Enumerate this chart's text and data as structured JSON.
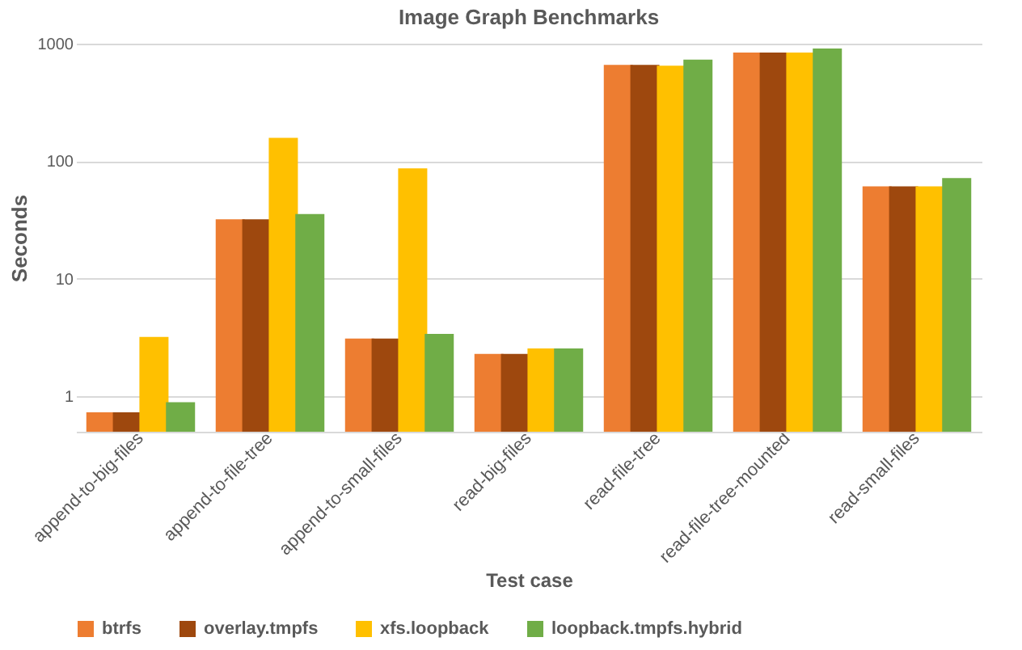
{
  "chart_data": {
    "type": "bar",
    "title": "Image Graph Benchmarks",
    "xlabel": "Test case",
    "ylabel": "Seconds",
    "categories": [
      "append-to-big-files",
      "append-to-file-tree",
      "append-to-small-files",
      "read-big-files",
      "read-file-tree",
      "read-file-tree-mounted",
      "read-small-files"
    ],
    "series": [
      {
        "name": "btrfs",
        "color": "#ed7d31",
        "values": [
          0.73,
          32,
          3.1,
          2.3,
          660,
          840,
          61
        ]
      },
      {
        "name": "overlay.tmpfs",
        "color": "#9e480e",
        "values": [
          0.73,
          32,
          3.1,
          2.3,
          660,
          840,
          61
        ]
      },
      {
        "name": "xfs.loopback",
        "color": "#ffc000",
        "values": [
          3.2,
          158,
          87,
          2.55,
          650,
          840,
          61
        ]
      },
      {
        "name": "loopback.tmpfs.hybrid",
        "color": "#70ad47",
        "values": [
          0.89,
          35.5,
          3.4,
          2.55,
          730,
          910,
          72
        ]
      }
    ],
    "log": "y",
    "ylim": [
      0.5,
      1000
    ],
    "yticks": [
      1,
      10,
      100,
      1000
    ],
    "grid": "y",
    "legend": "bottom"
  }
}
